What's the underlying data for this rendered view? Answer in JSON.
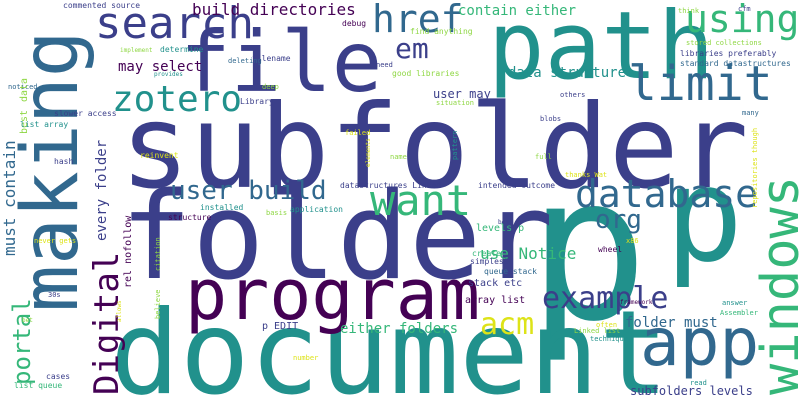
{
  "word_cloud": {
    "background": "#ffffff",
    "palette": {
      "dark_purple": "#440154",
      "indigo": "#3b3f8a",
      "slate_blue": "#31688e",
      "teal": "#21918c",
      "green": "#35b779",
      "lime": "#8fd744",
      "yellow": "#dde318"
    },
    "orientation_note": "horizontal and vertical (rotated 90 degrees) words",
    "words": [
      {
        "id": "subfolder",
        "text": "subfolder",
        "color": "#3b3f8a"
      },
      {
        "id": "p-big",
        "text": "p",
        "color": "#21918c"
      },
      {
        "id": "folder",
        "text": "folder",
        "color": "#3b3f8a"
      },
      {
        "id": "document",
        "text": "document",
        "color": "#21918c"
      },
      {
        "id": "path",
        "text": "path",
        "color": "#21918c"
      },
      {
        "id": "making",
        "text": "making",
        "color": "#31688e"
      },
      {
        "id": "file",
        "text": "file",
        "color": "#3b3f8a"
      },
      {
        "id": "program",
        "text": "program",
        "color": "#440154"
      },
      {
        "id": "windows",
        "text": "windows",
        "color": "#35b779"
      },
      {
        "id": "app",
        "text": "app",
        "color": "#31688e"
      },
      {
        "id": "p-2",
        "text": "p",
        "color": "#21918c"
      },
      {
        "id": "search",
        "text": "search",
        "color": "#3b3f8a"
      },
      {
        "id": "Digital",
        "text": "Digital",
        "color": "#440154"
      },
      {
        "id": "database",
        "text": "database",
        "color": "#31688e"
      },
      {
        "id": "limit",
        "text": "limit",
        "color": "#31688e"
      },
      {
        "id": "want",
        "text": "want",
        "color": "#35b779"
      },
      {
        "id": "href",
        "text": "href",
        "color": "#31688e"
      },
      {
        "id": "zotero",
        "text": "zotero",
        "color": "#21918c"
      },
      {
        "id": "example",
        "text": "example",
        "color": "#3b3f8a"
      },
      {
        "id": "using",
        "text": "using",
        "color": "#35b779"
      },
      {
        "id": "portal",
        "text": "portal",
        "color": "#35b779"
      },
      {
        "id": "acm",
        "text": "acm",
        "color": "#dde318"
      },
      {
        "id": "user-build",
        "text": "user build",
        "color": "#31688e"
      },
      {
        "id": "org",
        "text": "org",
        "color": "#31688e"
      },
      {
        "id": "em",
        "text": "em",
        "color": "#3b3f8a"
      },
      {
        "id": "build-directories",
        "text": "build directories",
        "color": "#440154"
      },
      {
        "id": "contain-either",
        "text": "contain either",
        "color": "#35b779"
      },
      {
        "id": "must-contain",
        "text": "must contain",
        "color": "#31688e"
      },
      {
        "id": "data-structure",
        "text": "data structure",
        "color": "#21918c"
      },
      {
        "id": "may-select",
        "text": "may select",
        "color": "#440154"
      },
      {
        "id": "use-Notice",
        "text": "use Notice",
        "color": "#35b779"
      },
      {
        "id": "either-folders",
        "text": "either folders",
        "color": "#35b779"
      },
      {
        "id": "folder-must",
        "text": "folder must",
        "color": "#31688e"
      },
      {
        "id": "every-folder",
        "text": "every folder",
        "color": "#3b3f8a"
      },
      {
        "id": "user-may",
        "text": "user may",
        "color": "#3b3f8a"
      },
      {
        "id": "subfolders-levels",
        "text": "subfolders levels",
        "color": "#3b3f8a"
      },
      {
        "id": "commented-source",
        "text": "commented source",
        "color": "#3b3f8a"
      },
      {
        "id": "filename",
        "text": "filename",
        "color": "#3b3f8a"
      },
      {
        "id": "debug",
        "text": "debug",
        "color": "#440154"
      },
      {
        "id": "find-anything",
        "text": "find anything",
        "color": "#8fd744"
      },
      {
        "id": "think",
        "text": "think",
        "color": "#8fd744"
      },
      {
        "id": "cfm",
        "text": "cfm",
        "color": "#3b3f8a"
      },
      {
        "id": "implement",
        "text": "implement",
        "color": "#8fd744"
      },
      {
        "id": "determine",
        "text": "determine",
        "color": "#21918c"
      },
      {
        "id": "deleting",
        "text": "deleting",
        "color": "#31688e"
      },
      {
        "id": "need",
        "text": "need",
        "color": "#3b3f8a"
      },
      {
        "id": "stored-collections",
        "text": "stored collections",
        "color": "#8fd744"
      },
      {
        "id": "libraries-preferably",
        "text": "libraries preferably",
        "color": "#3b3f8a"
      },
      {
        "id": "standard-datastructures",
        "text": "standard datastructures",
        "color": "#31688e"
      },
      {
        "id": "provides",
        "text": "provides",
        "color": "#21918c"
      },
      {
        "id": "good-libraries",
        "text": "good libraries",
        "color": "#8fd744"
      },
      {
        "id": "noticed",
        "text": "noticed",
        "color": "#31688e"
      },
      {
        "id": "deep",
        "text": "deep",
        "color": "#8fd744"
      },
      {
        "id": "Library",
        "text": "Library",
        "color": "#3b3f8a"
      },
      {
        "id": "situation",
        "text": "situation",
        "color": "#8fd744"
      },
      {
        "id": "others",
        "text": "others",
        "color": "#3b3f8a"
      },
      {
        "id": "slower-access",
        "text": "slower access",
        "color": "#3b3f8a"
      },
      {
        "id": "blobs",
        "text": "blobs",
        "color": "#3b3f8a"
      },
      {
        "id": "many",
        "text": "many",
        "color": "#31688e"
      },
      {
        "id": "data",
        "text": "data",
        "color": "#8fd744"
      },
      {
        "id": "best-v",
        "text": "best",
        "color": "#8fd744"
      },
      {
        "id": "list-array",
        "text": "list array",
        "color": "#21918c"
      },
      {
        "id": "failed",
        "text": "failed",
        "color": "#dde318"
      },
      {
        "id": "name",
        "text": "name",
        "color": "#8fd744"
      },
      {
        "id": "full",
        "text": "full",
        "color": "#8fd744"
      },
      {
        "id": "pattern",
        "text": "pattern",
        "color": "#21918c"
      },
      {
        "id": "elements",
        "text": "elements",
        "color": "#dde318"
      },
      {
        "id": "reinvent",
        "text": "reinvent",
        "color": "#dde318"
      },
      {
        "id": "thanks-Wat",
        "text": "thanks Wat",
        "color": "#dde318"
      },
      {
        "id": "repositories-though",
        "text": "repositories though",
        "color": "#dde318"
      },
      {
        "id": "hash",
        "text": "hash",
        "color": "#3b3f8a"
      },
      {
        "id": "rel-nofollow",
        "text": "rel nofollow",
        "color": "#440154"
      },
      {
        "id": "datastructures-Linked",
        "text": "datastructures Linked",
        "color": "#3b3f8a"
      },
      {
        "id": "intended-outcome",
        "text": "intended outcome",
        "color": "#3b3f8a"
      },
      {
        "id": "installed",
        "text": "installed",
        "color": "#21918c"
      },
      {
        "id": "basis",
        "text": "basis",
        "color": "#8fd744"
      },
      {
        "id": "application",
        "text": "application",
        "color": "#21918c"
      },
      {
        "id": "levels-p",
        "text": "levels p",
        "color": "#35b779"
      },
      {
        "id": "best-2",
        "text": "best",
        "color": "#3b3f8a"
      },
      {
        "id": "structure",
        "text": "structure",
        "color": "#440154"
      },
      {
        "id": "never-gets",
        "text": "never gets",
        "color": "#dde318"
      },
      {
        "id": "citation",
        "text": "citation",
        "color": "#8fd744"
      },
      {
        "id": "create",
        "text": "create",
        "color": "#35b779"
      },
      {
        "id": "simplest",
        "text": "simplest",
        "color": "#3b3f8a"
      },
      {
        "id": "wheel",
        "text": "wheel",
        "color": "#440154"
      },
      {
        "id": "x86",
        "text": "x86",
        "color": "#dde318"
      },
      {
        "id": "queue-stack",
        "text": "queue stack",
        "color": "#31688e"
      },
      {
        "id": "30s",
        "text": "30s",
        "color": "#3b3f8a"
      },
      {
        "id": "allows",
        "text": "allows",
        "color": "#dde318"
      },
      {
        "id": "believe",
        "text": "believe",
        "color": "#8fd744"
      },
      {
        "id": "stack-etc",
        "text": "stack etc",
        "color": "#3b3f8a"
      },
      {
        "id": "array-list",
        "text": "array list",
        "color": "#440154"
      },
      {
        "id": "answer",
        "text": "answer",
        "color": "#21918c"
      },
      {
        "id": "Assembler",
        "text": "Assembler",
        "color": "#35b779"
      },
      {
        "id": "bet",
        "text": "bet",
        "color": "#8fd744"
      },
      {
        "id": "p-EDIT",
        "text": "p EDIT",
        "color": "#3b3f8a"
      },
      {
        "id": "often",
        "text": "often",
        "color": "#dde318"
      },
      {
        "id": "Linked-list",
        "text": "Linked list",
        "color": "#8fd744"
      },
      {
        "id": "technique",
        "text": "technique",
        "color": "#21918c"
      },
      {
        "id": "number",
        "text": "number",
        "color": "#dde318"
      },
      {
        "id": "cases",
        "text": "cases",
        "color": "#3b3f8a"
      },
      {
        "id": "list-queue",
        "text": "list queue",
        "color": "#35b779"
      },
      {
        "id": "read",
        "text": "read",
        "color": "#21918c"
      },
      {
        "id": "framework",
        "text": "framework",
        "color": "#440154"
      }
    ]
  }
}
